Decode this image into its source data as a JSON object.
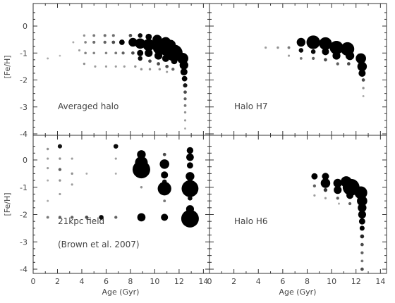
{
  "figure": {
    "ylabel_top": "[Fe/H]",
    "ylabel_bottom": "[Fe/H]",
    "xlabel_left": "Age (Gyr)",
    "xlabel_right": "Age (Gyr)"
  },
  "chart_data": [
    {
      "type": "scatter",
      "encoding": "bubble size and darkness = relative stellar mass fraction per age/[Fe/H] bin",
      "panel": "top-left",
      "label": "Averaged halo",
      "xlabel": "",
      "ylabel": "[Fe/H]",
      "xlim": [
        0,
        14.5
      ],
      "ylim": [
        -4.1,
        0.8
      ],
      "xticks": [
        0,
        2,
        4,
        6,
        8,
        10,
        12,
        14
      ],
      "yticks": [
        0,
        -1,
        -2,
        -3,
        -4
      ],
      "points": [
        {
          "x": 1.2,
          "y": -1.2,
          "w": 0.04
        },
        {
          "x": 2.2,
          "y": -1.1,
          "w": 0.03
        },
        {
          "x": 3.3,
          "y": -0.6,
          "w": 0.04
        },
        {
          "x": 3.8,
          "y": -0.9,
          "w": 0.05
        },
        {
          "x": 4.2,
          "y": -0.35,
          "w": 0.06
        },
        {
          "x": 4.3,
          "y": -0.6,
          "w": 0.07
        },
        {
          "x": 4.3,
          "y": -1.0,
          "w": 0.07
        },
        {
          "x": 4.2,
          "y": -1.4,
          "w": 0.06
        },
        {
          "x": 5.0,
          "y": -0.35,
          "w": 0.08
        },
        {
          "x": 5.0,
          "y": -0.6,
          "w": 0.09
        },
        {
          "x": 5.0,
          "y": -1.0,
          "w": 0.07
        },
        {
          "x": 5.1,
          "y": -1.5,
          "w": 0.05
        },
        {
          "x": 5.9,
          "y": -0.35,
          "w": 0.09
        },
        {
          "x": 5.9,
          "y": -0.6,
          "w": 0.1
        },
        {
          "x": 6.0,
          "y": -1.0,
          "w": 0.07
        },
        {
          "x": 6.0,
          "y": -1.5,
          "w": 0.05
        },
        {
          "x": 6.6,
          "y": -0.35,
          "w": 0.09
        },
        {
          "x": 6.6,
          "y": -0.6,
          "w": 0.12
        },
        {
          "x": 6.8,
          "y": -1.0,
          "w": 0.08
        },
        {
          "x": 6.8,
          "y": -1.5,
          "w": 0.05
        },
        {
          "x": 7.3,
          "y": -0.6,
          "w": 0.25
        },
        {
          "x": 7.4,
          "y": -1.0,
          "w": 0.1
        },
        {
          "x": 7.5,
          "y": -1.5,
          "w": 0.05
        },
        {
          "x": 8.0,
          "y": -0.35,
          "w": 0.12
        },
        {
          "x": 8.2,
          "y": -0.6,
          "w": 0.45
        },
        {
          "x": 8.2,
          "y": -1.0,
          "w": 0.12
        },
        {
          "x": 8.4,
          "y": -1.5,
          "w": 0.06
        },
        {
          "x": 8.8,
          "y": -0.35,
          "w": 0.2
        },
        {
          "x": 8.8,
          "y": -0.65,
          "w": 0.55
        },
        {
          "x": 8.8,
          "y": -1.0,
          "w": 0.3
        },
        {
          "x": 8.8,
          "y": -1.2,
          "w": 0.2
        },
        {
          "x": 8.9,
          "y": -1.6,
          "w": 0.06
        },
        {
          "x": 9.5,
          "y": -0.4,
          "w": 0.3
        },
        {
          "x": 9.5,
          "y": -0.7,
          "w": 0.65
        },
        {
          "x": 9.5,
          "y": -1.0,
          "w": 0.4
        },
        {
          "x": 9.6,
          "y": -1.3,
          "w": 0.12
        },
        {
          "x": 9.6,
          "y": -1.6,
          "w": 0.06
        },
        {
          "x": 10.2,
          "y": -0.5,
          "w": 0.5
        },
        {
          "x": 10.4,
          "y": -0.8,
          "w": 0.75
        },
        {
          "x": 10.3,
          "y": -1.1,
          "w": 0.4
        },
        {
          "x": 10.3,
          "y": -1.4,
          "w": 0.12
        },
        {
          "x": 10.4,
          "y": -1.6,
          "w": 0.06
        },
        {
          "x": 10.9,
          "y": -0.6,
          "w": 0.55
        },
        {
          "x": 11.0,
          "y": -0.85,
          "w": 0.8
        },
        {
          "x": 10.9,
          "y": -1.2,
          "w": 0.35
        },
        {
          "x": 11.0,
          "y": -1.5,
          "w": 0.12
        },
        {
          "x": 11.0,
          "y": -1.7,
          "w": 0.05
        },
        {
          "x": 11.3,
          "y": -0.7,
          "w": 0.55
        },
        {
          "x": 11.6,
          "y": -1.0,
          "w": 0.95
        },
        {
          "x": 11.6,
          "y": -1.3,
          "w": 0.3
        },
        {
          "x": 11.5,
          "y": -1.6,
          "w": 0.1
        },
        {
          "x": 12.3,
          "y": -1.2,
          "w": 0.6
        },
        {
          "x": 12.4,
          "y": -1.45,
          "w": 0.45
        },
        {
          "x": 12.4,
          "y": -1.7,
          "w": 0.35
        },
        {
          "x": 12.45,
          "y": -1.95,
          "w": 0.25
        },
        {
          "x": 12.5,
          "y": -2.2,
          "w": 0.18
        },
        {
          "x": 12.5,
          "y": -2.45,
          "w": 0.12
        },
        {
          "x": 12.5,
          "y": -2.7,
          "w": 0.1
        },
        {
          "x": 12.5,
          "y": -2.95,
          "w": 0.08
        },
        {
          "x": 12.5,
          "y": -3.2,
          "w": 0.06
        },
        {
          "x": 12.5,
          "y": -3.5,
          "w": 0.05
        },
        {
          "x": 12.5,
          "y": -3.8,
          "w": 0.04
        }
      ]
    },
    {
      "type": "scatter",
      "encoding": "bubble size and darkness = relative stellar mass fraction per age/[Fe/H] bin",
      "panel": "top-right",
      "label": "Halo H7",
      "xlabel": "",
      "ylabel": "",
      "xlim": [
        0,
        14.5
      ],
      "ylim": [
        -4.1,
        0.8
      ],
      "xticks": [
        0,
        2,
        4,
        6,
        8,
        10,
        12,
        14
      ],
      "yticks": [
        0,
        -1,
        -2,
        -3,
        -4
      ],
      "points": [
        {
          "x": 4.6,
          "y": -0.8,
          "w": 0.05
        },
        {
          "x": 5.6,
          "y": -0.8,
          "w": 0.06
        },
        {
          "x": 6.5,
          "y": -0.8,
          "w": 0.08
        },
        {
          "x": 6.5,
          "y": -1.1,
          "w": 0.05
        },
        {
          "x": 7.5,
          "y": -0.6,
          "w": 0.45
        },
        {
          "x": 7.5,
          "y": -0.9,
          "w": 0.2
        },
        {
          "x": 7.5,
          "y": -1.2,
          "w": 0.08
        },
        {
          "x": 8.5,
          "y": -0.6,
          "w": 0.75
        },
        {
          "x": 8.5,
          "y": -0.95,
          "w": 0.2
        },
        {
          "x": 8.5,
          "y": -1.2,
          "w": 0.1
        },
        {
          "x": 9.5,
          "y": -0.65,
          "w": 0.7
        },
        {
          "x": 9.5,
          "y": -0.95,
          "w": 0.35
        },
        {
          "x": 9.5,
          "y": -1.25,
          "w": 0.12
        },
        {
          "x": 10.4,
          "y": -0.8,
          "w": 0.75
        },
        {
          "x": 10.4,
          "y": -1.1,
          "w": 0.4
        },
        {
          "x": 10.5,
          "y": -1.4,
          "w": 0.1
        },
        {
          "x": 11.3,
          "y": -0.85,
          "w": 0.75
        },
        {
          "x": 11.5,
          "y": -1.1,
          "w": 0.45
        },
        {
          "x": 11.4,
          "y": -1.4,
          "w": 0.12
        },
        {
          "x": 12.4,
          "y": -1.2,
          "w": 0.55
        },
        {
          "x": 12.5,
          "y": -1.5,
          "w": 0.5
        },
        {
          "x": 12.5,
          "y": -1.75,
          "w": 0.35
        },
        {
          "x": 12.6,
          "y": -2.0,
          "w": 0.12
        },
        {
          "x": 12.6,
          "y": -2.3,
          "w": 0.06
        },
        {
          "x": 12.6,
          "y": -2.6,
          "w": 0.04
        }
      ]
    },
    {
      "type": "scatter",
      "encoding": "bubble size and darkness = relative stellar mass fraction per age/[Fe/H] bin",
      "panel": "bottom-left",
      "label": "21kpc field",
      "label2": "(Brown et al. 2007)",
      "xlabel": "Age (Gyr)",
      "ylabel": "[Fe/H]",
      "xlim": [
        0,
        14.5
      ],
      "ylim": [
        -4.1,
        0.8
      ],
      "xticks": [
        0,
        2,
        4,
        6,
        8,
        10,
        12,
        14
      ],
      "yticks": [
        0,
        -1,
        -2,
        -3,
        -4
      ],
      "points": [
        {
          "x": 1.2,
          "y": 0.4,
          "w": 0.06
        },
        {
          "x": 1.2,
          "y": 0.05,
          "w": 0.05
        },
        {
          "x": 1.2,
          "y": -0.3,
          "w": 0.05
        },
        {
          "x": 1.2,
          "y": -0.75,
          "w": 0.04
        },
        {
          "x": 1.2,
          "y": -1.5,
          "w": 0.04
        },
        {
          "x": 1.2,
          "y": -2.1,
          "w": 0.08
        },
        {
          "x": 2.2,
          "y": 0.5,
          "w": 0.18
        },
        {
          "x": 2.2,
          "y": 0.05,
          "w": 0.06
        },
        {
          "x": 2.2,
          "y": -0.35,
          "w": 0.1
        },
        {
          "x": 2.2,
          "y": -0.75,
          "w": 0.06
        },
        {
          "x": 2.2,
          "y": -1.25,
          "w": 0.05
        },
        {
          "x": 2.2,
          "y": -2.1,
          "w": 0.1
        },
        {
          "x": 3.2,
          "y": 0.05,
          "w": 0.05
        },
        {
          "x": 3.2,
          "y": -0.5,
          "w": 0.06
        },
        {
          "x": 3.2,
          "y": -0.9,
          "w": 0.05
        },
        {
          "x": 3.2,
          "y": -2.1,
          "w": 0.1
        },
        {
          "x": 4.4,
          "y": -0.5,
          "w": 0.04
        },
        {
          "x": 4.4,
          "y": -2.1,
          "w": 0.12
        },
        {
          "x": 5.6,
          "y": -2.1,
          "w": 0.2
        },
        {
          "x": 6.8,
          "y": 0.5,
          "w": 0.2
        },
        {
          "x": 6.8,
          "y": 0.05,
          "w": 0.05
        },
        {
          "x": 6.8,
          "y": -0.5,
          "w": 0.04
        },
        {
          "x": 6.8,
          "y": -2.1,
          "w": 0.1
        },
        {
          "x": 8.9,
          "y": 0.2,
          "w": 0.45
        },
        {
          "x": 8.9,
          "y": -0.1,
          "w": 0.7
        },
        {
          "x": 8.9,
          "y": -0.35,
          "w": 1.0
        },
        {
          "x": 8.9,
          "y": -1.0,
          "w": 0.06
        },
        {
          "x": 8.9,
          "y": -2.1,
          "w": 0.42
        },
        {
          "x": 10.8,
          "y": 0.2,
          "w": 0.12
        },
        {
          "x": 10.8,
          "y": -0.15,
          "w": 0.5
        },
        {
          "x": 10.8,
          "y": -0.55,
          "w": 0.35
        },
        {
          "x": 10.8,
          "y": -0.8,
          "w": 0.2
        },
        {
          "x": 10.8,
          "y": -1.05,
          "w": 0.75
        },
        {
          "x": 10.8,
          "y": -1.5,
          "w": 0.08
        },
        {
          "x": 10.8,
          "y": -2.1,
          "w": 0.35
        },
        {
          "x": 12.9,
          "y": 0.35,
          "w": 0.32
        },
        {
          "x": 12.9,
          "y": 0.1,
          "w": 0.38
        },
        {
          "x": 12.9,
          "y": -0.2,
          "w": 0.3
        },
        {
          "x": 12.9,
          "y": -0.6,
          "w": 0.45
        },
        {
          "x": 12.9,
          "y": -0.8,
          "w": 0.25
        },
        {
          "x": 12.9,
          "y": -1.05,
          "w": 0.95
        },
        {
          "x": 12.9,
          "y": -1.4,
          "w": 0.2
        },
        {
          "x": 12.9,
          "y": -1.8,
          "w": 0.4
        },
        {
          "x": 12.9,
          "y": -2.15,
          "w": 1.0
        }
      ]
    },
    {
      "type": "scatter",
      "encoding": "bubble size and darkness = relative stellar mass fraction per age/[Fe/H] bin",
      "panel": "bottom-right",
      "label": "Halo H6",
      "xlabel": "Age (Gyr)",
      "ylabel": "",
      "xlim": [
        0,
        14.5
      ],
      "ylim": [
        -4.1,
        0.8
      ],
      "xticks": [
        0,
        2,
        4,
        6,
        8,
        10,
        12,
        14
      ],
      "yticks": [
        0,
        -1,
        -2,
        -3,
        -4
      ],
      "points": [
        {
          "x": 8.6,
          "y": -0.6,
          "w": 0.3
        },
        {
          "x": 8.6,
          "y": -0.95,
          "w": 0.1
        },
        {
          "x": 8.6,
          "y": -1.3,
          "w": 0.05
        },
        {
          "x": 9.5,
          "y": -0.6,
          "w": 0.35
        },
        {
          "x": 9.5,
          "y": -0.85,
          "w": 0.5
        },
        {
          "x": 9.5,
          "y": -1.1,
          "w": 0.15
        },
        {
          "x": 9.5,
          "y": -1.4,
          "w": 0.05
        },
        {
          "x": 10.5,
          "y": -0.85,
          "w": 0.45
        },
        {
          "x": 10.5,
          "y": -1.1,
          "w": 0.4
        },
        {
          "x": 10.5,
          "y": -1.4,
          "w": 0.1
        },
        {
          "x": 10.6,
          "y": -1.6,
          "w": 0.04
        },
        {
          "x": 11.2,
          "y": -0.8,
          "w": 0.6
        },
        {
          "x": 11.6,
          "y": -1.0,
          "w": 0.95
        },
        {
          "x": 11.5,
          "y": -1.3,
          "w": 0.35
        },
        {
          "x": 11.5,
          "y": -1.6,
          "w": 0.1
        },
        {
          "x": 12.4,
          "y": -1.2,
          "w": 0.7
        },
        {
          "x": 12.5,
          "y": -1.5,
          "w": 0.55
        },
        {
          "x": 12.5,
          "y": -1.75,
          "w": 0.45
        },
        {
          "x": 12.5,
          "y": -2.0,
          "w": 0.4
        },
        {
          "x": 12.5,
          "y": -2.25,
          "w": 0.3
        },
        {
          "x": 12.5,
          "y": -2.5,
          "w": 0.22
        },
        {
          "x": 12.5,
          "y": -2.8,
          "w": 0.16
        },
        {
          "x": 12.5,
          "y": -3.1,
          "w": 0.12
        },
        {
          "x": 12.5,
          "y": -3.4,
          "w": 0.1
        },
        {
          "x": 12.5,
          "y": -3.7,
          "w": 0.08
        },
        {
          "x": 12.5,
          "y": -4.0,
          "w": 0.12
        }
      ]
    }
  ]
}
